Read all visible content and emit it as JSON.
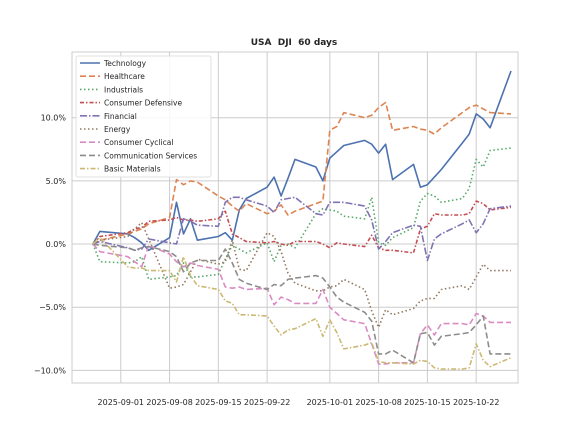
{
  "chart_data": {
    "type": "line",
    "title": "USA  DJI  60 days",
    "xlabel": "",
    "ylabel": "",
    "ylim": [
      -11.0,
      15.2
    ],
    "xlim": [
      "2025-08-25",
      "2025-10-28"
    ],
    "y_tick_values": [
      -10,
      -5,
      0,
      5,
      10
    ],
    "y_tick_labels": [
      "−10.0%",
      "−5.0%",
      "0.0%",
      "5.0%",
      "10.0%"
    ],
    "x_tick_values": [
      "2025-09-01",
      "2025-09-08",
      "2025-09-15",
      "2025-09-22",
      "2025-10-01",
      "2025-10-08",
      "2025-10-15",
      "2025-10-22"
    ],
    "x_tick_labels": [
      "2025-09-01",
      "2025-09-08",
      "2025-09-15",
      "2025-09-22",
      "2025-10-01",
      "2025-10-08",
      "2025-10-15",
      "2025-10-22"
    ],
    "grid": true,
    "legend_position": "top-left",
    "dates": [
      "2025-08-28",
      "2025-08-29",
      "2025-09-02",
      "2025-09-03",
      "2025-09-04",
      "2025-09-05",
      "2025-09-08",
      "2025-09-09",
      "2025-09-10",
      "2025-09-11",
      "2025-09-12",
      "2025-09-15",
      "2025-09-16",
      "2025-09-17",
      "2025-09-18",
      "2025-09-19",
      "2025-09-22",
      "2025-09-23",
      "2025-09-24",
      "2025-09-25",
      "2025-09-26",
      "2025-09-29",
      "2025-09-30",
      "2025-10-01",
      "2025-10-02",
      "2025-10-03",
      "2025-10-06",
      "2025-10-07",
      "2025-10-08",
      "2025-10-09",
      "2025-10-10",
      "2025-10-13",
      "2025-10-14",
      "2025-10-15",
      "2025-10-16",
      "2025-10-17",
      "2025-10-20",
      "2025-10-21",
      "2025-10-22",
      "2025-10-23",
      "2025-10-24",
      "2025-10-27"
    ],
    "series": [
      {
        "name": "Technology",
        "color": "#4c72b0",
        "dash": "solid",
        "values": [
          0,
          1.0,
          0.8,
          0.5,
          0.1,
          -0.5,
          0.5,
          3.3,
          0.8,
          2.0,
          0.3,
          0.6,
          0.9,
          0.3,
          2.7,
          3.6,
          4.5,
          5.3,
          3.8,
          5.2,
          6.7,
          6.1,
          5.0,
          6.8,
          7.3,
          7.8,
          8.2,
          7.9,
          7.2,
          7.9,
          5.1,
          6.3,
          4.5,
          4.7,
          5.3,
          5.9,
          8.0,
          8.7,
          10.3,
          9.9,
          9.2,
          13.7
        ]
      },
      {
        "name": "Healthcare",
        "color": "#dd8452",
        "dash": "6,3",
        "values": [
          0,
          0.3,
          0.8,
          1.0,
          1.2,
          1.6,
          2.1,
          5.1,
          4.7,
          5.0,
          4.9,
          3.8,
          3.5,
          3.0,
          2.6,
          3.2,
          2.4,
          2.6,
          3.1,
          2.3,
          2.6,
          3.2,
          3.4,
          9.0,
          9.3,
          10.4,
          10.0,
          10.2,
          10.8,
          11.2,
          9.0,
          9.3,
          9.1,
          9.0,
          8.7,
          9.2,
          10.4,
          10.8,
          11.0,
          10.7,
          10.4,
          10.3
        ]
      },
      {
        "name": "Industrials",
        "color": "#55a868",
        "dash": "1.5,2.5",
        "values": [
          0,
          -1.4,
          -1.5,
          -1.4,
          -1.0,
          -2.8,
          -2.6,
          -2.5,
          -1.5,
          -2.6,
          -2.6,
          -2.4,
          -1.2,
          -0.1,
          -0.4,
          -0.7,
          0.1,
          -1.4,
          -0.1,
          0.0,
          -0.3,
          2.4,
          2.8,
          2.7,
          2.6,
          2.2,
          2.0,
          3.7,
          0.1,
          -0.1,
          0.5,
          1.3,
          3.4,
          4.0,
          3.8,
          3.3,
          3.6,
          4.4,
          6.7,
          6.1,
          7.4,
          7.6
        ]
      },
      {
        "name": "Consumer Defensive",
        "color": "#c44e52",
        "dash": "4,2,1.5,2",
        "values": [
          0,
          0.6,
          0.9,
          1.2,
          1.3,
          1.8,
          1.9,
          2.1,
          1.9,
          1.9,
          1.8,
          2.0,
          2.6,
          0.8,
          0.5,
          0.2,
          0.1,
          0.2,
          0.0,
          -0.1,
          0.2,
          0.2,
          0.0,
          -0.3,
          0.1,
          0.0,
          -0.2,
          0.7,
          -0.3,
          -0.5,
          -0.5,
          -0.7,
          1.2,
          1.4,
          2.4,
          2.3,
          2.3,
          2.4,
          3.4,
          3.2,
          2.7,
          2.9
        ]
      },
      {
        "name": "Financial",
        "color": "#8172b3",
        "dash": "7,2,1.5,2",
        "values": [
          0,
          0.2,
          -0.3,
          -0.5,
          -0.4,
          0.4,
          0.1,
          0.0,
          2.0,
          1.8,
          1.5,
          1.4,
          3.3,
          3.7,
          3.7,
          3.5,
          3.0,
          2.5,
          3.5,
          3.6,
          3.7,
          2.4,
          2.3,
          3.3,
          3.3,
          3.3,
          3.0,
          1.9,
          -0.4,
          0.2,
          0.9,
          1.5,
          1.4,
          -1.3,
          0.4,
          0.8,
          1.6,
          1.9,
          0.9,
          1.6,
          2.8,
          3.0
        ]
      },
      {
        "name": "Energy",
        "color": "#937860",
        "dash": "1.5,2.5",
        "values": [
          0,
          0.3,
          0.6,
          1.2,
          1.7,
          0.4,
          -3.5,
          -3.4,
          -3.2,
          -2.2,
          -1.2,
          -1.6,
          -1.4,
          0.3,
          -2.0,
          -2.1,
          0.9,
          0.6,
          -0.6,
          -2.3,
          -3.1,
          -3.7,
          -3.7,
          -3.4,
          -3.3,
          -2.8,
          -3.6,
          -5.3,
          -6.6,
          -5.2,
          -5.6,
          -5.1,
          -4.5,
          -4.3,
          -4.3,
          -3.6,
          -3.3,
          -3.6,
          -2.6,
          -1.6,
          -2.1,
          -2.1
        ]
      },
      {
        "name": "Consumer Cyclical",
        "color": "#da8bc3",
        "dash": "6,3",
        "values": [
          0,
          -0.6,
          -1.0,
          -1.4,
          -1.8,
          -0.1,
          -0.8,
          -1.4,
          -1.8,
          -1.5,
          -1.7,
          -2.0,
          -3.4,
          -3.5,
          -3.4,
          -3.6,
          -3.5,
          -4.8,
          -4.2,
          -4.4,
          -4.7,
          -4.7,
          -3.6,
          -5.0,
          -5.5,
          -6.0,
          -6.3,
          -7.9,
          -9.5,
          -9.5,
          -9.4,
          -9.4,
          -7.1,
          -6.4,
          -7.2,
          -6.3,
          -6.3,
          -6.4,
          -5.5,
          -5.7,
          -6.2,
          -6.2
        ]
      },
      {
        "name": "Communication Services",
        "color": "#8c8c8c",
        "dash": "6,3",
        "values": [
          0,
          -0.1,
          -0.3,
          -0.5,
          -0.3,
          -0.2,
          -0.6,
          -1.0,
          -2.2,
          -1.5,
          -1.3,
          -1.3,
          -0.4,
          -1.5,
          -2.8,
          -3.1,
          -3.6,
          -3.2,
          -3.3,
          -2.8,
          -2.7,
          -2.5,
          -2.7,
          -3.4,
          -4.2,
          -4.6,
          -5.4,
          -6.1,
          -8.7,
          -8.7,
          -8.4,
          -9.4,
          -7.1,
          -7.0,
          -8.0,
          -7.3,
          -7.1,
          -7.0,
          -6.4,
          -5.7,
          -8.7,
          -8.7
        ]
      },
      {
        "name": "Basic Materials",
        "color": "#ccb974",
        "dash": "5,2,1.5,2",
        "values": [
          0,
          0.5,
          -1.8,
          -1.9,
          -1.9,
          -2.1,
          -2.1,
          -3.0,
          -1.0,
          -2.5,
          -3.3,
          -3.6,
          -4.5,
          -4.7,
          -5.6,
          -5.6,
          -5.7,
          -6.5,
          -7.2,
          -6.8,
          -6.7,
          -5.9,
          -7.3,
          -6.0,
          -7.0,
          -8.3,
          -8.0,
          -7.8,
          -9.3,
          -9.4,
          -9.4,
          -9.5,
          -9.2,
          -9.3,
          -9.8,
          -9.9,
          -9.9,
          -9.8,
          -7.9,
          -9.2,
          -9.7,
          -9.0
        ]
      }
    ]
  }
}
